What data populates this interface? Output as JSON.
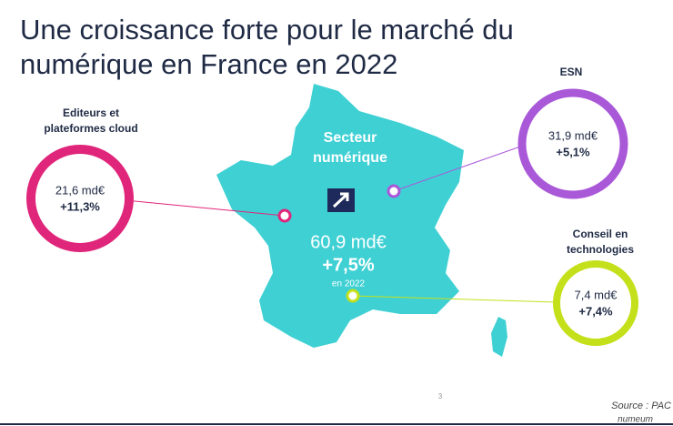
{
  "title": [
    "Une croissance forte pour le marché du",
    "numérique en France en 2022"
  ],
  "center": {
    "label": [
      "Secteur",
      "numérique"
    ],
    "amount": "60,9 md€",
    "growth": "+7,5%",
    "period": "en 2022"
  },
  "segments": [
    {
      "label": [
        "Editeurs et",
        "plateformes cloud"
      ],
      "amount": "21,6 md€",
      "growth": "+11,3%"
    },
    {
      "label": [
        "ESN"
      ],
      "amount": "31,9 md€",
      "growth": "+5,1%"
    },
    {
      "label": [
        "Conseil en",
        "technologies"
      ],
      "amount": "7,4 md€",
      "growth": "+7,4%"
    }
  ],
  "page_number": "3",
  "source": [
    "Source : PAC",
    "numeum"
  ]
}
